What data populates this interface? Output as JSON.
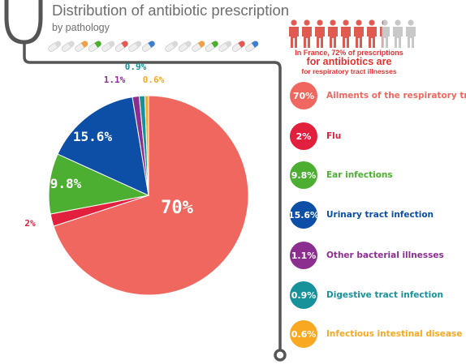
{
  "header": {
    "title": "Distribution of antibiotic prescription",
    "subtitle": "by pathology"
  },
  "infographic": {
    "note_line1": "In France, 72% of prescriptions",
    "note_line2": "for antibiotics are",
    "note_line3": "for respiratory tract illnesses",
    "people_highlighted_fraction": 0.72,
    "people_count": 10,
    "pill_count": 15,
    "person_color_active": "#e05a52",
    "person_color_inactive": "#c8c8c8",
    "stethoscope_color": "#555555"
  },
  "chart_data": {
    "type": "pie",
    "title": "Distribution of antibiotic prescription",
    "subtitle": "by pathology",
    "slices": [
      {
        "label": "Ailments of the respiratory tract",
        "value": 70,
        "display": "70%",
        "color": "#f0675f"
      },
      {
        "label": "Flu",
        "value": 2,
        "display": "2%",
        "color": "#e21f3c"
      },
      {
        "label": "Ear infections",
        "value": 9.8,
        "display": "9.8%",
        "color": "#4caf32"
      },
      {
        "label": "Urinary tract infection",
        "value": 15.6,
        "display": "15.6%",
        "color": "#0d4fa6"
      },
      {
        "label": "Other bacterial illnesses",
        "value": 1.1,
        "display": "1.1%",
        "color": "#8b2e8f"
      },
      {
        "label": "Digestive tract infection",
        "value": 0.9,
        "display": "0.9%",
        "color": "#17929a"
      },
      {
        "label": "Infectious intestinal disease",
        "value": 0.6,
        "display": "0.6%",
        "color": "#f8a821"
      }
    ],
    "legend_position": "right"
  }
}
